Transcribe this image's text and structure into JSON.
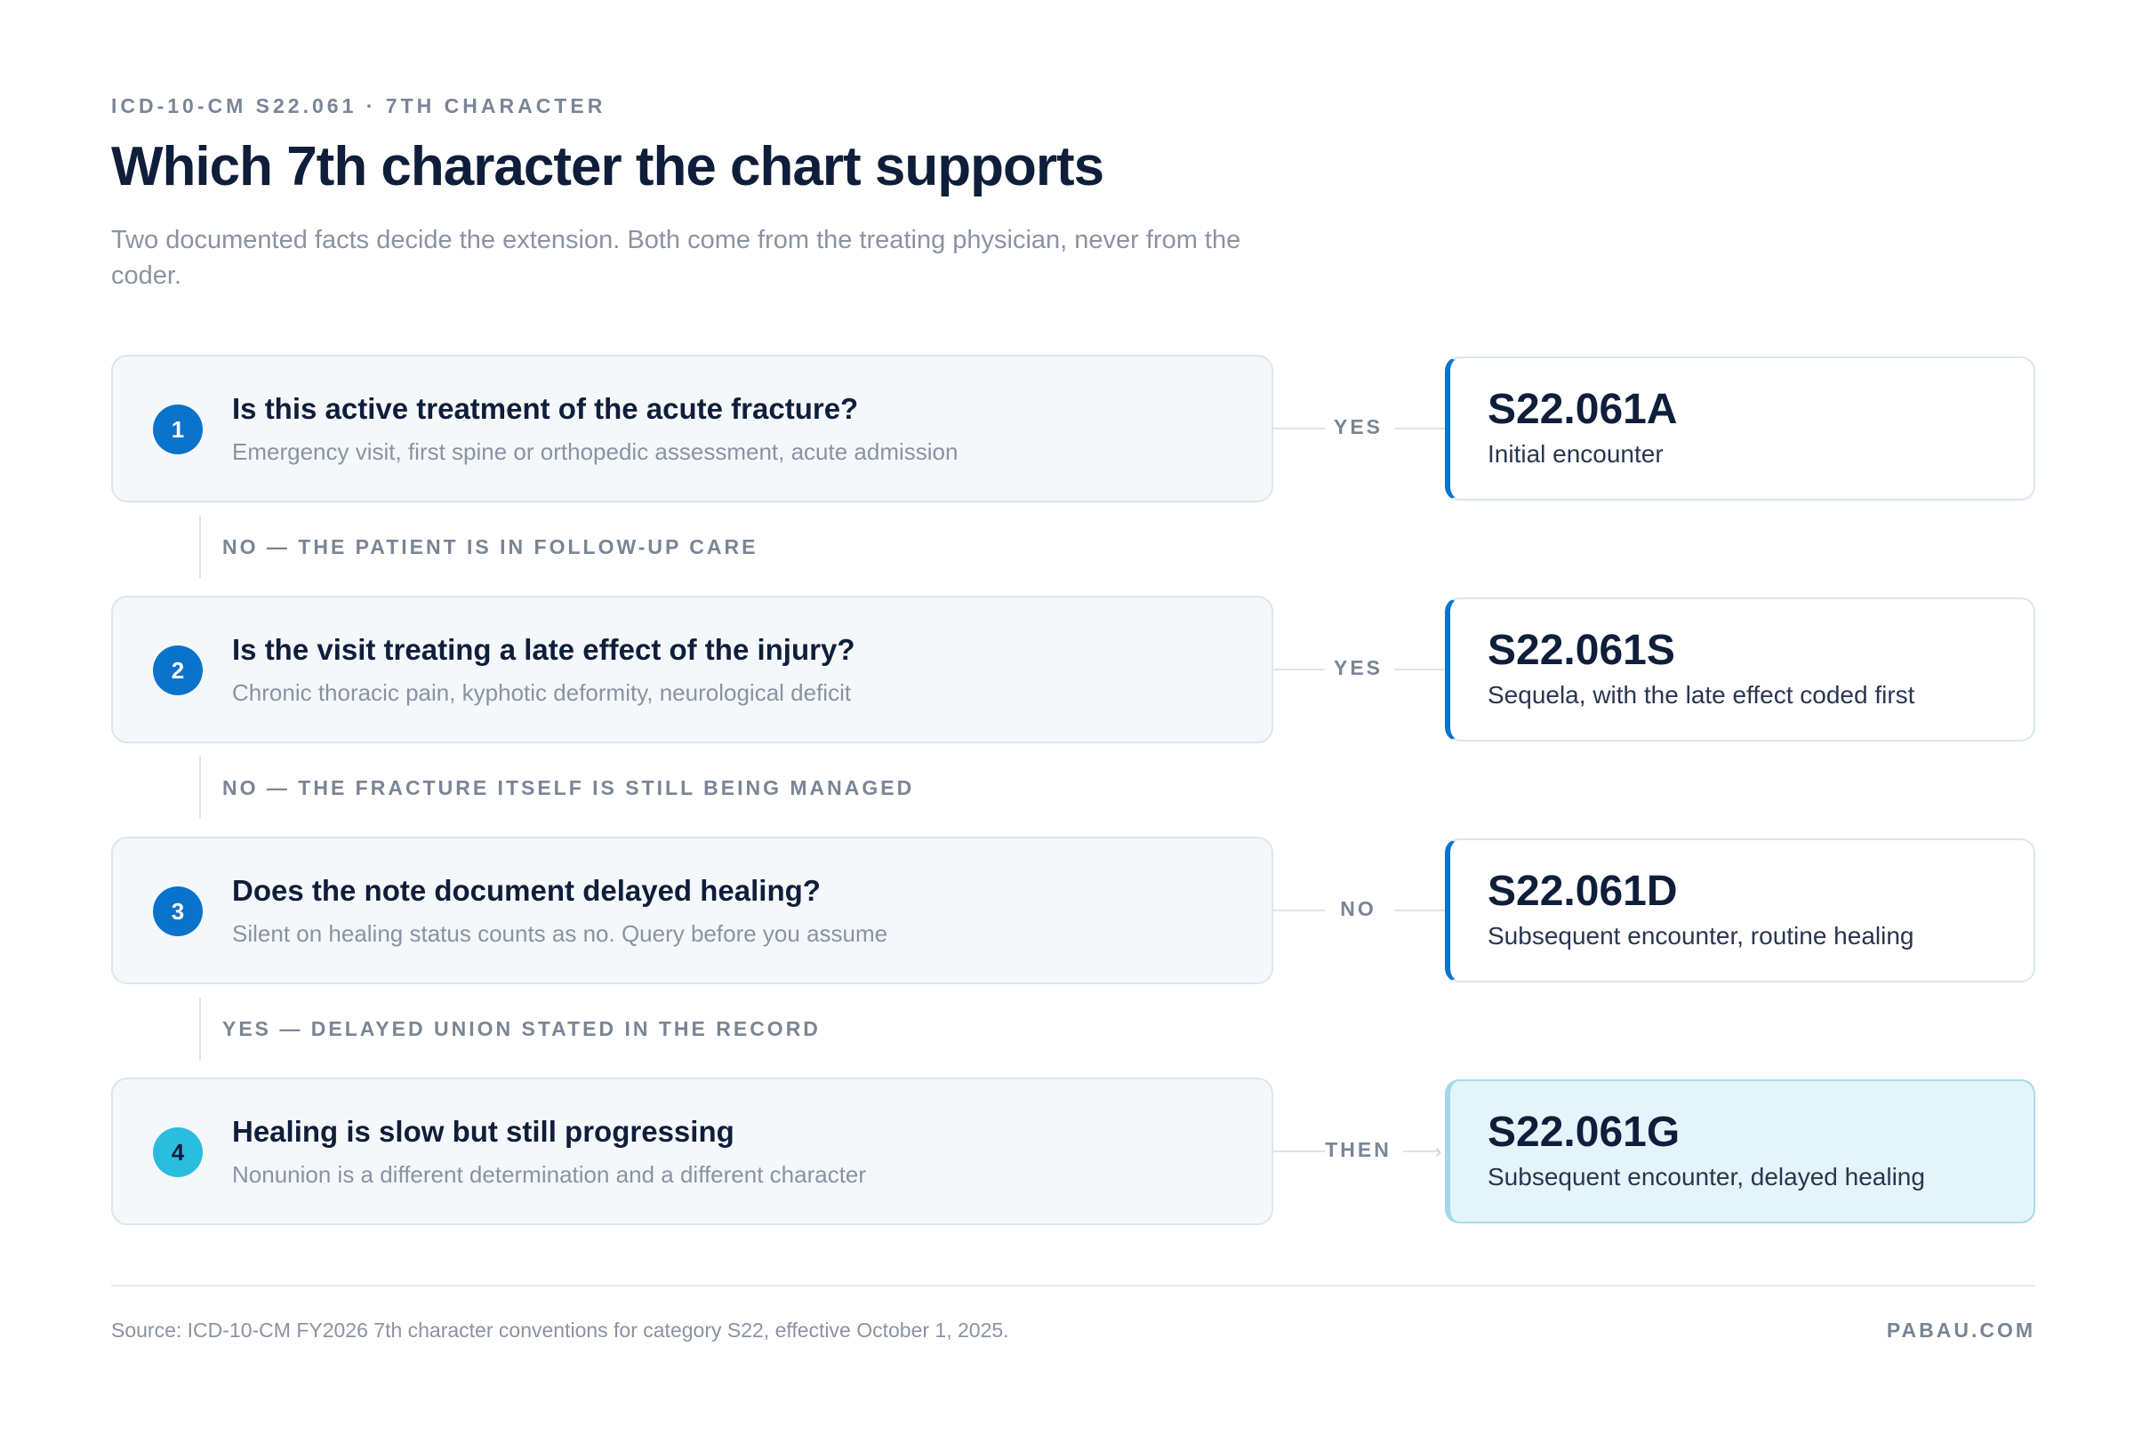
{
  "header": {
    "eyebrow": "ICD-10-CM S22.061 · 7TH CHARACTER",
    "title": "Which 7th character the chart supports",
    "subtitle": "Two documented facts decide the extension. Both come from the treating physician, never from the coder."
  },
  "steps": [
    {
      "number": "1",
      "question": "Is this active treatment of the acute fracture?",
      "detail": "Emergency visit, first spine or orthopedic assessment, acute admission",
      "connector": "YES",
      "result_code": "S22.061A",
      "result_desc": "Initial encounter"
    },
    {
      "number": "2",
      "question": "Is the visit treating a late effect of the injury?",
      "detail": "Chronic thoracic pain, kyphotic deformity, neurological deficit",
      "connector": "YES",
      "result_code": "S22.061S",
      "result_desc": "Sequela, with the late effect coded first"
    },
    {
      "number": "3",
      "question": "Does the note document delayed healing?",
      "detail": "Silent on healing status counts as no. Query before you assume",
      "connector": "NO",
      "result_code": "S22.061D",
      "result_desc": "Subsequent encounter, routine healing"
    },
    {
      "number": "4",
      "question": "Healing is slow but still progressing",
      "detail": "Nonunion is a different determination and a different character",
      "connector": "THEN",
      "result_code": "S22.061G",
      "result_desc": "Subsequent encounter, delayed healing"
    }
  ],
  "branches": [
    "NO — THE PATIENT IS IN FOLLOW-UP CARE",
    "NO — THE FRACTURE ITSELF IS STILL BEING MANAGED",
    "YES — DELAYED UNION STATED IN THE RECORD"
  ],
  "footer": {
    "source": "Source: ICD-10-CM FY2026 7th character conventions for category S22, effective October 1, 2025.",
    "brand": "PABAU.COM"
  },
  "colors": {
    "accent": "#0a73cc",
    "final_accent": "#2bbde0",
    "final_fill": "#e3f5fa"
  },
  "icons": [
    "arrow-right-icon"
  ]
}
